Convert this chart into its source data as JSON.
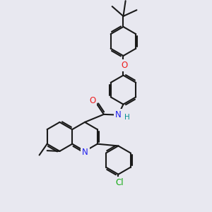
{
  "bg_color": "#e8e8f0",
  "bond_color": "#1a1a1a",
  "bond_lw": 1.5,
  "dbl_off": 0.055,
  "colors": {
    "N": "#2020ee",
    "O": "#ee2020",
    "Cl": "#10aa10",
    "H": "#009090",
    "C": "#1a1a1a"
  },
  "fs": 8.5,
  "xlim": [
    -2.6,
    2.8
  ],
  "ylim": [
    -3.4,
    4.2
  ]
}
